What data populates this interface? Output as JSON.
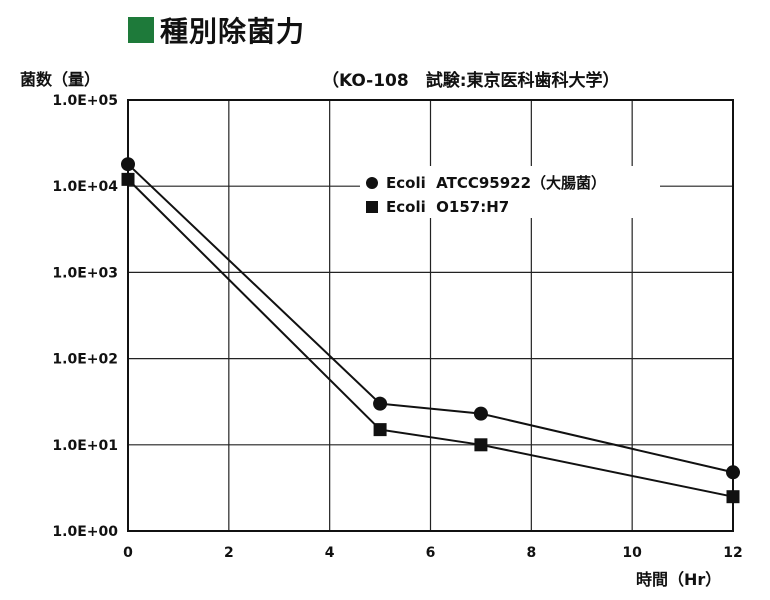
{
  "title": "種別除菌力",
  "title_block_color": "#1e7a3a",
  "subtitle": "（KO-108　試験:東京医科歯科大学）",
  "chart_data": {
    "type": "line",
    "ylabel": "菌数（量）",
    "xlabel": "時間（Hr）",
    "x_ticks": [
      "0",
      "2",
      "4",
      "6",
      "8",
      "10",
      "12"
    ],
    "y_ticks": [
      "1.0E+00",
      "1.0E+01",
      "1.0E+02",
      "1.0E+03",
      "1.0E+04",
      "1.0E+05"
    ],
    "xlim": [
      0,
      12
    ],
    "ylim": [
      1,
      100000
    ],
    "y_scale": "log",
    "grid": true,
    "legend_position": "top-right",
    "series": [
      {
        "name": "Ecoli  ATCC95922（大腸菌）",
        "marker": "circle",
        "x": [
          0,
          5,
          7,
          12
        ],
        "y": [
          18000,
          30,
          23,
          4.8
        ]
      },
      {
        "name": "Ecoli  O157:H7",
        "marker": "square",
        "x": [
          0,
          5,
          7,
          12
        ],
        "y": [
          12000,
          15,
          10,
          2.5
        ]
      }
    ]
  }
}
